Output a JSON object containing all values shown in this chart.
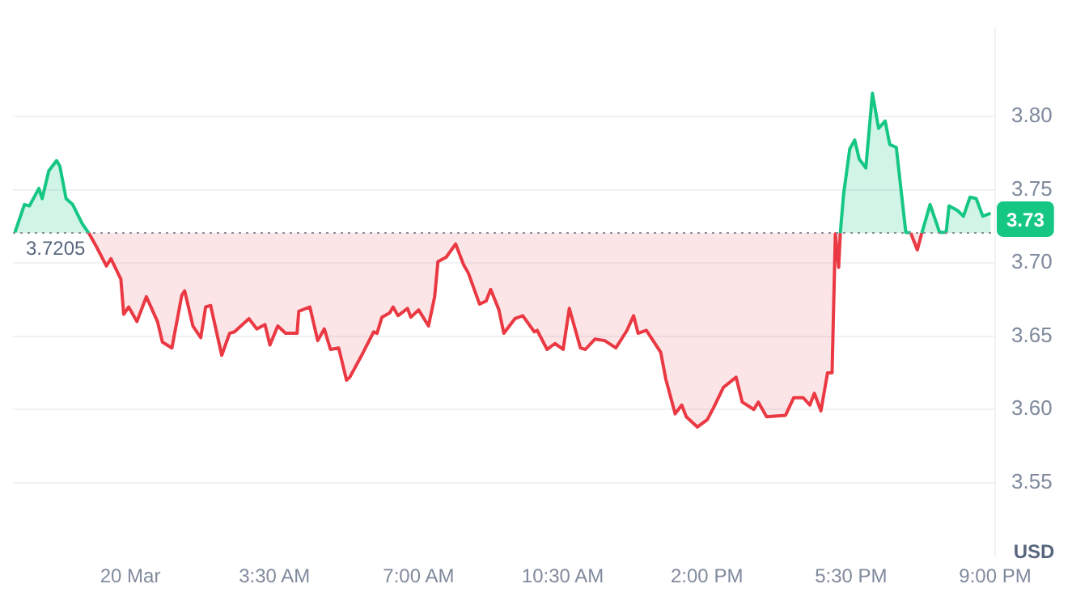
{
  "chart_data": {
    "type": "area",
    "ylabel": "USD",
    "grid": "y",
    "legend": false,
    "x": [
      -2.8,
      -2.57,
      -2.45,
      -2.22,
      -2.14,
      -1.98,
      -1.79,
      -1.71,
      -1.56,
      -1.4,
      -1.17,
      -1.01,
      -0.82,
      -0.58,
      -0.47,
      -0.23,
      -0.16,
      -0.04,
      0.16,
      0.39,
      0.66,
      0.78,
      1.01,
      1.25,
      1.32,
      1.52,
      1.71,
      1.83,
      1.95,
      2.22,
      2.41,
      2.53,
      2.88,
      3.07,
      3.27,
      3.39,
      3.58,
      3.77,
      4.05,
      4.09,
      4.36,
      4.55,
      4.71,
      4.86,
      5.06,
      5.25,
      5.33,
      5.6,
      5.8,
      5.91,
      5.99,
      6.11,
      6.3,
      6.38,
      6.5,
      6.73,
      6.81,
      7.0,
      7.24,
      7.39,
      7.47,
      7.67,
      7.9,
      8.09,
      8.21,
      8.48,
      8.64,
      8.75,
      8.95,
      9.07,
      9.34,
      9.53,
      9.81,
      9.88,
      10.12,
      10.31,
      10.51,
      10.66,
      10.93,
      11.05,
      11.28,
      11.52,
      11.79,
      12.06,
      12.22,
      12.33,
      12.53,
      12.88,
      13.0,
      13.23,
      13.39,
      13.5,
      13.77,
      14.01,
      14.16,
      14.4,
      14.71,
      14.86,
      15.14,
      15.25,
      15.45,
      15.91,
      16.11,
      16.34,
      16.5,
      16.61,
      16.77,
      16.93,
      17.04,
      17.12,
      17.2,
      17.24,
      17.32,
      17.47,
      17.59,
      17.7,
      17.86,
      18.02,
      18.17,
      18.33,
      18.44,
      18.6,
      18.83,
      18.95,
      19.11,
      19.22,
      19.42,
      19.65,
      19.81,
      19.88,
      20.08,
      20.23,
      20.39,
      20.54,
      20.7,
      20.89
    ],
    "series": [
      {
        "color": "#16c784",
        "values": [
          3.721,
          3.74,
          3.739,
          3.751,
          3.744,
          3.763,
          3.77,
          3.766,
          3.744,
          3.74,
          3.727,
          3.7205,
          null,
          null,
          null,
          null,
          null,
          null,
          null,
          null,
          null,
          null,
          null,
          null,
          null,
          null,
          null,
          null,
          null,
          null,
          null,
          null,
          null,
          null,
          null,
          null,
          null,
          null,
          null,
          null,
          null,
          null,
          null,
          null,
          null,
          null,
          null,
          null,
          null,
          null,
          null,
          null,
          null,
          null,
          null,
          null,
          null,
          null,
          null,
          null,
          null,
          null,
          null,
          null,
          null,
          null,
          null,
          null,
          null,
          null,
          null,
          null,
          null,
          null,
          null,
          null,
          null,
          null,
          null,
          null,
          null,
          null,
          null,
          null,
          null,
          null,
          null,
          null,
          null,
          null,
          null,
          null,
          null,
          null,
          null,
          null,
          null,
          null,
          null,
          null,
          null,
          null,
          null,
          null,
          null,
          null,
          null,
          null,
          null,
          null,
          null,
          3.7205,
          3.747,
          3.778,
          3.784,
          3.771,
          3.765,
          3.816,
          3.792,
          3.797,
          3.781,
          3.779,
          3.721,
          3.7205,
          null,
          3.7205,
          3.74,
          3.721,
          3.721,
          3.739,
          3.736,
          3.732,
          3.745,
          3.744,
          3.732,
          3.734
        ]
      },
      {
        "color": "#ea3943",
        "values": [
          null,
          null,
          null,
          null,
          null,
          null,
          null,
          null,
          null,
          null,
          null,
          3.7205,
          3.711,
          3.698,
          3.703,
          3.689,
          3.665,
          3.67,
          3.66,
          3.677,
          3.66,
          3.646,
          3.642,
          3.678,
          3.681,
          3.657,
          3.649,
          3.67,
          3.671,
          3.637,
          3.652,
          3.653,
          3.662,
          3.655,
          3.658,
          3.644,
          3.657,
          3.652,
          3.652,
          3.667,
          3.67,
          3.647,
          3.655,
          3.641,
          3.642,
          3.62,
          3.622,
          3.636,
          3.647,
          3.653,
          3.652,
          3.663,
          3.666,
          3.67,
          3.664,
          3.669,
          3.663,
          3.668,
          3.657,
          3.677,
          3.701,
          3.704,
          3.713,
          3.699,
          3.693,
          3.672,
          3.674,
          3.682,
          3.668,
          3.652,
          3.662,
          3.664,
          3.653,
          3.654,
          3.641,
          3.645,
          3.641,
          3.669,
          3.642,
          3.641,
          3.648,
          3.647,
          3.642,
          3.654,
          3.664,
          3.652,
          3.654,
          3.639,
          3.621,
          3.597,
          3.603,
          3.595,
          3.588,
          3.593,
          3.601,
          3.615,
          3.622,
          3.605,
          3.6,
          3.605,
          3.595,
          3.596,
          3.608,
          3.608,
          3.603,
          3.611,
          3.599,
          3.625,
          3.625,
          3.72,
          3.697,
          3.7205,
          null,
          null,
          null,
          null,
          null,
          null,
          null,
          null,
          null,
          null,
          null,
          3.7205,
          3.709,
          3.7205,
          null,
          null,
          null,
          null,
          null,
          null,
          null,
          null,
          null,
          null
        ]
      }
    ],
    "xlim": [
      -2.85,
      21
    ],
    "xticks": [
      {
        "value": 0,
        "label": "20 Mar"
      },
      {
        "value": 3.5,
        "label": "3:30 AM"
      },
      {
        "value": 7,
        "label": "7:00 AM"
      },
      {
        "value": 10.5,
        "label": "10:30 AM"
      },
      {
        "value": 14,
        "label": "2:00 PM"
      },
      {
        "value": 17.5,
        "label": "5:30 PM"
      },
      {
        "value": 21,
        "label": "9:00 PM"
      }
    ],
    "ylim": [
      3.5,
      3.86
    ],
    "yticks": [
      {
        "value": 3.55,
        "label": "3.55"
      },
      {
        "value": 3.6,
        "label": "3.60"
      },
      {
        "value": 3.65,
        "label": "3.65"
      },
      {
        "value": 3.7,
        "label": "3.70"
      },
      {
        "value": 3.75,
        "label": "3.75"
      },
      {
        "value": 3.8,
        "label": "3.80"
      }
    ],
    "ref_lines": [
      {
        "axis": "y",
        "value": 3.7205,
        "label": "3.7205",
        "color": "#8a8f9c",
        "line_style": "dotted"
      }
    ],
    "annotations": [
      {
        "text": "3.73",
        "y": 3.73
      }
    ]
  }
}
